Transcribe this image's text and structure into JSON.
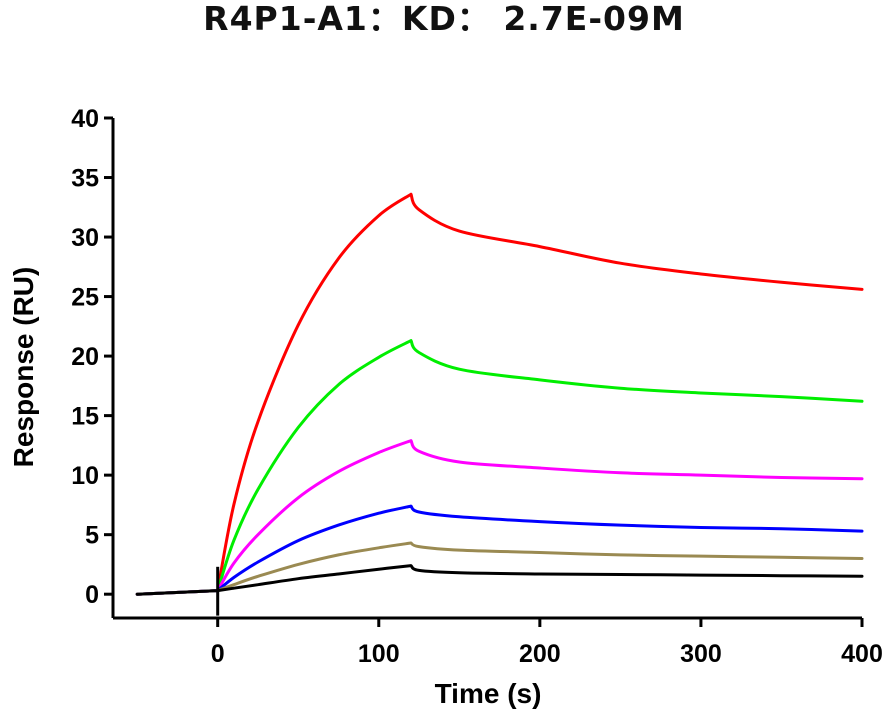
{
  "chart_data": {
    "type": "line",
    "title": "R4P1-A1：KD： 2.7E-09M",
    "xlabel": "Time (s)",
    "ylabel": "Response (RU)",
    "xlim": [
      -65,
      400
    ],
    "ylim": [
      -2,
      40
    ],
    "x_ticks": [
      0,
      100,
      200,
      300,
      400
    ],
    "y_ticks": [
      0,
      5,
      10,
      15,
      20,
      25,
      30,
      35,
      40
    ],
    "x_tick_labels": [
      "0",
      "100",
      "200",
      "300",
      "400"
    ],
    "y_tick_labels": [
      "0",
      "5",
      "10",
      "15",
      "20",
      "25",
      "30",
      "35",
      "40"
    ],
    "grid": false,
    "legend": "none",
    "association_end": 120,
    "series": [
      {
        "color": "#ff0000",
        "values": [
          [
            -50,
            0
          ],
          [
            0,
            0.3
          ],
          [
            10,
            7.5
          ],
          [
            25,
            14.5
          ],
          [
            50,
            22.6
          ],
          [
            75,
            28.2
          ],
          [
            100,
            31.8
          ],
          [
            120,
            33.6
          ],
          [
            125,
            32.3
          ],
          [
            150,
            30.5
          ],
          [
            200,
            29.2
          ],
          [
            250,
            27.8
          ],
          [
            300,
            26.9
          ],
          [
            350,
            26.2
          ],
          [
            400,
            25.6
          ]
        ]
      },
      {
        "color": "#00ee00",
        "values": [
          [
            -50,
            0
          ],
          [
            0,
            0.3
          ],
          [
            10,
            4.5
          ],
          [
            25,
            8.8
          ],
          [
            50,
            14.0
          ],
          [
            75,
            17.6
          ],
          [
            100,
            19.9
          ],
          [
            120,
            21.3
          ],
          [
            125,
            20.3
          ],
          [
            150,
            18.9
          ],
          [
            200,
            18.0
          ],
          [
            250,
            17.3
          ],
          [
            300,
            16.9
          ],
          [
            350,
            16.6
          ],
          [
            400,
            16.2
          ]
        ]
      },
      {
        "color": "#ff00ff",
        "values": [
          [
            -50,
            0
          ],
          [
            0,
            0.3
          ],
          [
            10,
            2.6
          ],
          [
            25,
            5.0
          ],
          [
            50,
            8.1
          ],
          [
            75,
            10.3
          ],
          [
            100,
            11.9
          ],
          [
            120,
            12.9
          ],
          [
            125,
            12.0
          ],
          [
            150,
            11.1
          ],
          [
            200,
            10.6
          ],
          [
            250,
            10.2
          ],
          [
            300,
            10.0
          ],
          [
            350,
            9.8
          ],
          [
            400,
            9.7
          ]
        ]
      },
      {
        "color": "#0000ff",
        "values": [
          [
            -50,
            0
          ],
          [
            0,
            0.3
          ],
          [
            10,
            1.4
          ],
          [
            25,
            2.7
          ],
          [
            50,
            4.5
          ],
          [
            75,
            5.8
          ],
          [
            100,
            6.8
          ],
          [
            120,
            7.4
          ],
          [
            125,
            6.9
          ],
          [
            150,
            6.5
          ],
          [
            200,
            6.1
          ],
          [
            250,
            5.8
          ],
          [
            300,
            5.6
          ],
          [
            350,
            5.5
          ],
          [
            400,
            5.3
          ]
        ]
      },
      {
        "color": "#9a8a52",
        "values": [
          [
            -50,
            0
          ],
          [
            0,
            0.3
          ],
          [
            10,
            0.8
          ],
          [
            25,
            1.5
          ],
          [
            50,
            2.5
          ],
          [
            75,
            3.3
          ],
          [
            100,
            3.9
          ],
          [
            120,
            4.3
          ],
          [
            125,
            4.0
          ],
          [
            150,
            3.7
          ],
          [
            200,
            3.5
          ],
          [
            250,
            3.3
          ],
          [
            300,
            3.2
          ],
          [
            350,
            3.1
          ],
          [
            400,
            3.0
          ]
        ]
      },
      {
        "color": "#000000",
        "values": [
          [
            -50,
            0
          ],
          [
            0,
            0.3
          ],
          [
            10,
            0.5
          ],
          [
            25,
            0.8
          ],
          [
            50,
            1.3
          ],
          [
            75,
            1.7
          ],
          [
            100,
            2.1
          ],
          [
            120,
            2.4
          ],
          [
            125,
            2.0
          ],
          [
            150,
            1.8
          ],
          [
            200,
            1.7
          ],
          [
            250,
            1.65
          ],
          [
            300,
            1.6
          ],
          [
            350,
            1.55
          ],
          [
            400,
            1.5
          ]
        ]
      }
    ]
  }
}
